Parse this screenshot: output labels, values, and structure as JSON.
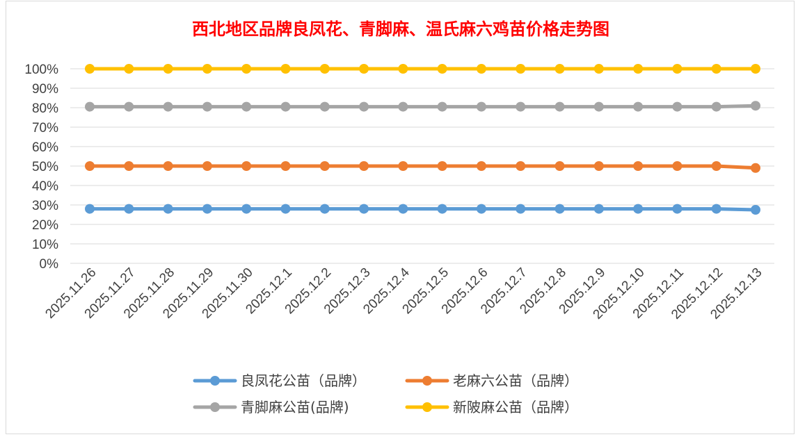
{
  "chart_data": {
    "type": "line",
    "title": "西北地区品牌良凤花、青脚麻、温氏麻六鸡苗价格走势图",
    "xlabel": "",
    "ylabel": "",
    "ylim": [
      0,
      1
    ],
    "yticks": [
      "0%",
      "10%",
      "20%",
      "30%",
      "40%",
      "50%",
      "60%",
      "70%",
      "80%",
      "90%",
      "100%"
    ],
    "grid": true,
    "legend_position": "bottom",
    "categories": [
      "2025.11.26",
      "2025.11.27",
      "2025.11.28",
      "2025.11.29",
      "2025.11.30",
      "2025.12.1",
      "2025.12.2",
      "2025.12.3",
      "2025.12.4",
      "2025.12.5",
      "2025.12.6",
      "2025.12.7",
      "2025.12.8",
      "2025.12.9",
      "2025.12.10",
      "2025.12.11",
      "2025.12.12",
      "2025.12.13"
    ],
    "series": [
      {
        "name": "良凤花公苗（品牌）",
        "color": "#5b9bd5",
        "values": [
          0.28,
          0.28,
          0.28,
          0.28,
          0.28,
          0.28,
          0.28,
          0.28,
          0.28,
          0.28,
          0.28,
          0.28,
          0.28,
          0.28,
          0.28,
          0.28,
          0.28,
          0.275
        ]
      },
      {
        "name": "老麻六公苗（品牌）",
        "color": "#ed7d31",
        "values": [
          0.5,
          0.5,
          0.5,
          0.5,
          0.5,
          0.5,
          0.5,
          0.5,
          0.5,
          0.5,
          0.5,
          0.5,
          0.5,
          0.5,
          0.5,
          0.5,
          0.5,
          0.49
        ]
      },
      {
        "name": "青脚麻公苗(品牌)",
        "color": "#a5a5a5",
        "values": [
          0.805,
          0.805,
          0.805,
          0.805,
          0.805,
          0.805,
          0.805,
          0.805,
          0.805,
          0.805,
          0.805,
          0.805,
          0.805,
          0.805,
          0.805,
          0.805,
          0.805,
          0.81
        ]
      },
      {
        "name": "新陂麻公苗（品牌）",
        "color": "#ffc000",
        "values": [
          1.0,
          1.0,
          1.0,
          1.0,
          1.0,
          1.0,
          1.0,
          1.0,
          1.0,
          1.0,
          1.0,
          1.0,
          1.0,
          1.0,
          1.0,
          1.0,
          1.0,
          1.0
        ]
      }
    ],
    "legend_order": [
      0,
      1,
      2,
      3
    ]
  }
}
